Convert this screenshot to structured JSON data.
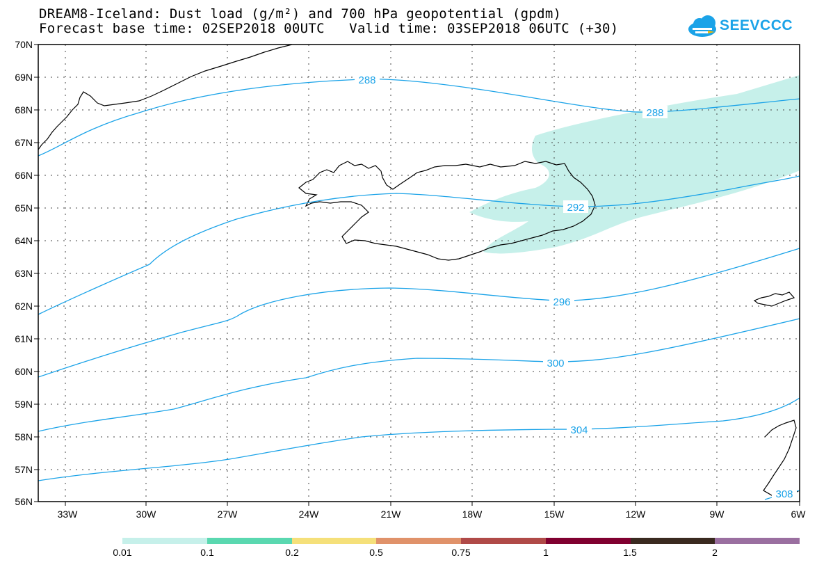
{
  "header": {
    "title_line1": "DREAM8-Iceland: Dust load (g/m²) and 700 hPa geopotential (gpdm)",
    "title_line2": "Forecast base time: 02SEP2018 00UTC   Valid time: 03SEP2018 06UTC (+30)"
  },
  "logo": {
    "text": "SEEVCCC",
    "color": "#1ba3e8"
  },
  "map": {
    "lat_labels": [
      "70N",
      "69N",
      "68N",
      "67N",
      "66N",
      "65N",
      "64N",
      "63N",
      "62N",
      "61N",
      "60N",
      "59N",
      "58N",
      "57N",
      "56N"
    ],
    "lon_labels": [
      "33W",
      "30W",
      "27W",
      "24W",
      "21W",
      "18W",
      "15W",
      "12W",
      "9W",
      "6W"
    ],
    "contour_labels": {
      "c288a": "288",
      "c288b": "288",
      "c292": "292",
      "c296": "296",
      "c300": "300",
      "c304": "304",
      "c308": "308"
    },
    "contour_color": "#1ba3e8",
    "dust_color": "#c6f0ea"
  },
  "legend": {
    "colors": [
      "#c6f0ea",
      "#5ad8b0",
      "#f5e07a",
      "#e0926a",
      "#b04a48",
      "#800030",
      "#3a2a20",
      "#9a6fa0"
    ],
    "labels": [
      "0.01",
      "0.1",
      "0.2",
      "0.5",
      "0.75",
      "1",
      "1.5",
      "2"
    ]
  }
}
